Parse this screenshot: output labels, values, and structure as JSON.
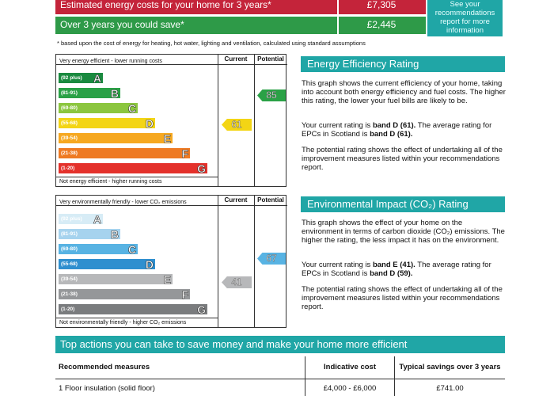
{
  "costs": {
    "row1_label": "Estimated energy costs for your home for 3 years*",
    "row1_value": "£7,305",
    "row2_label": "Over 3 years you could save*",
    "row2_value": "£2,445",
    "see_box": [
      "See your",
      "recommendations",
      "report for more",
      "information"
    ],
    "footnote": "* based upon the cost of energy for heating, hot water, lighting and ventilation, calculated using standard assumptions"
  },
  "energy_chart": {
    "top_label": "Very energy efficient - lower running costs",
    "bottom_label": "Not energy efficient - higher running costs",
    "current_header": "Current",
    "potential_header": "Potential",
    "current_value": "61",
    "potential_value": "85",
    "bands": [
      {
        "range": "(92 plus)",
        "letter": "A",
        "color": "#1a8a3f"
      },
      {
        "range": "(81-91)",
        "letter": "B",
        "color": "#2aa146"
      },
      {
        "range": "(69-80)",
        "letter": "C",
        "color": "#8cc63f"
      },
      {
        "range": "(55-68)",
        "letter": "D",
        "color": "#f3d515"
      },
      {
        "range": "(39-54)",
        "letter": "E",
        "color": "#f6a821"
      },
      {
        "range": "(21-38)",
        "letter": "F",
        "color": "#ee7a23"
      },
      {
        "range": "(1-20)",
        "letter": "G",
        "color": "#e4312b"
      }
    ]
  },
  "env_chart": {
    "top_label": "Very environmentally friendly - lower CO₂ emissions",
    "bottom_label": "Not environmentally friendly - higher CO₂ emissions",
    "current_header": "Current",
    "potential_header": "Potential",
    "current_value": "41",
    "potential_value": "67",
    "bands": [
      {
        "range": "(92 plus)",
        "letter": "A",
        "color": "#d7ecf6"
      },
      {
        "range": "(81-91)",
        "letter": "B",
        "color": "#a6d3ee"
      },
      {
        "range": "(69-80)",
        "letter": "C",
        "color": "#58b3e3"
      },
      {
        "range": "(55-68)",
        "letter": "D",
        "color": "#2f8fcf"
      },
      {
        "range": "(39-54)",
        "letter": "E",
        "color": "#b7b8ba"
      },
      {
        "range": "(21-38)",
        "letter": "F",
        "color": "#959799"
      },
      {
        "range": "(1-20)",
        "letter": "G",
        "color": "#7a7c7e"
      }
    ]
  },
  "energy_rating": {
    "heading": "Energy Efficiency Rating",
    "p1": "This graph shows the current efficiency of your home, taking into account both energy efficiency and fuel costs. The higher this rating, the lower your fuel bills are likely to be.",
    "p2_a": "Your current rating is ",
    "p2_b": "band D (61).",
    "p2_c": " The average rating for EPCs in Scotland is ",
    "p2_d": "band D (61).",
    "p3": "The potential rating shows the effect of undertaking all of the improvement measures listed within your recommendations report."
  },
  "env_rating": {
    "heading": "Environmental Impact (CO₂) Rating",
    "p1": "This graph shows the effect of your home on the environment in terms of carbon dioxide (CO₂) emissions. The higher the rating, the less impact it has on the environment.",
    "p2_a": "Your current rating is ",
    "p2_b": "band E (41).",
    "p2_c": " The average rating for EPCs in Scotland is ",
    "p2_d": "band D (59).",
    "p3": "The potential rating shows the effect of undertaking all of the improvement measures listed within your recommendations report."
  },
  "actions": {
    "heading": "Top actions you can take to save money and make your home more efficient",
    "col1": "Recommended measures",
    "col2": "Indicative cost",
    "col3": "Typical savings over 3 years",
    "row1": {
      "measure": "1  Floor insulation (solid floor)",
      "cost": "£4,000 - £6,000",
      "saving": "£741.00"
    }
  }
}
